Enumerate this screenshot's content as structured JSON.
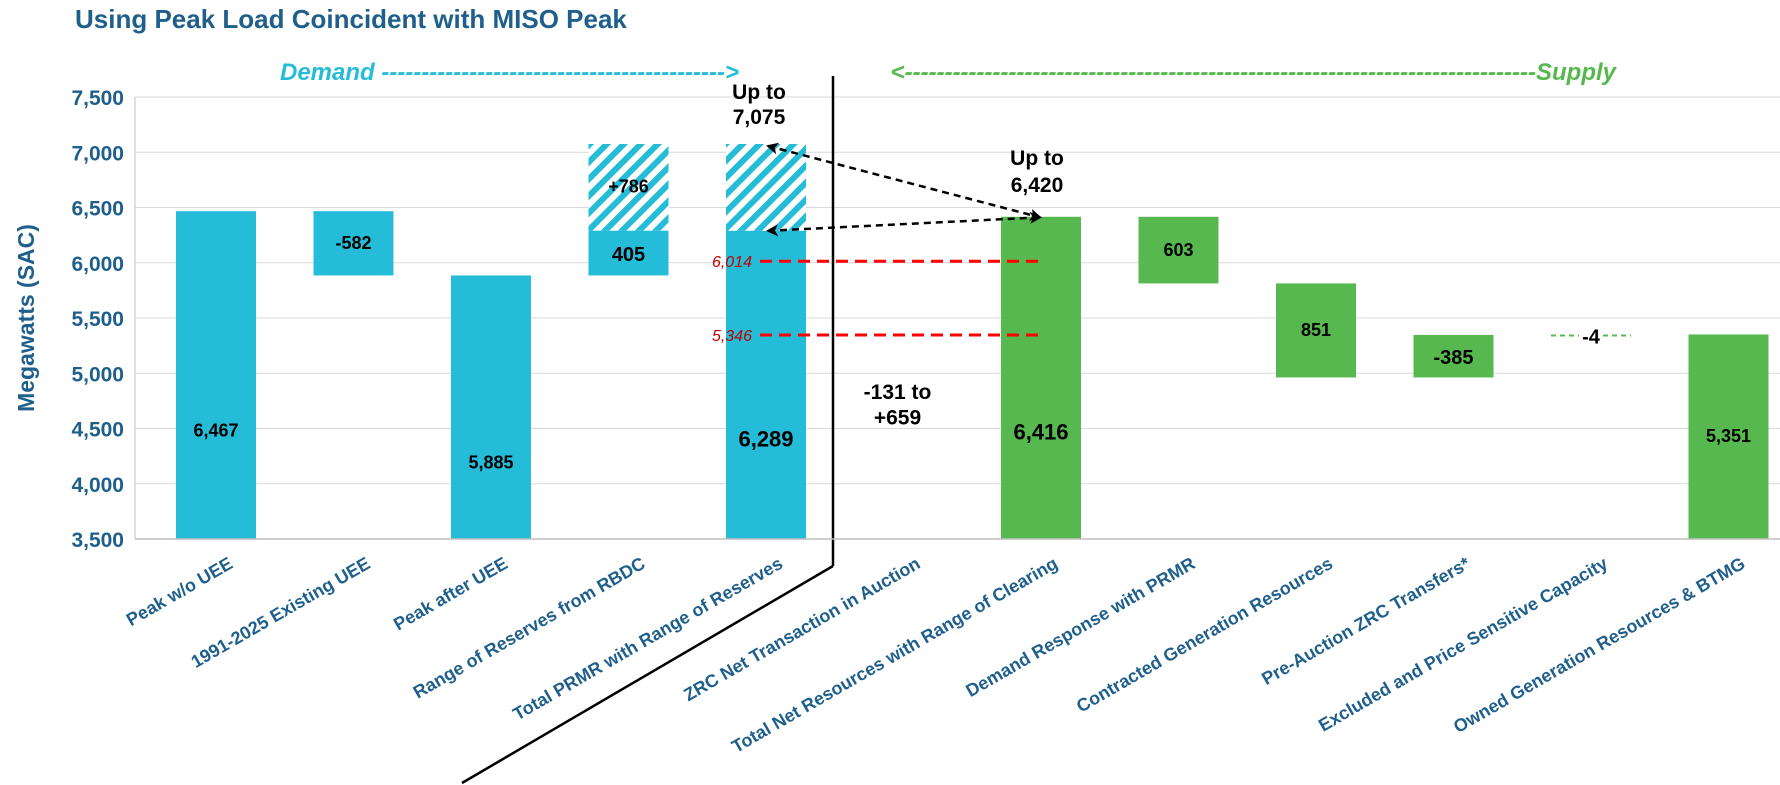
{
  "title": "Using Peak Load Coincident with MISO Peak",
  "chart_data": {
    "type": "bar",
    "ylabel": "Megawatts (SAC)",
    "ylim": [
      3500,
      7500
    ],
    "yticks": [
      "3,500",
      "4,000",
      "4,500",
      "5,000",
      "5,500",
      "6,000",
      "6,500",
      "7,000",
      "7,500"
    ],
    "grid": true,
    "demand_label": "Demand ------------------------------------------->",
    "supply_label": "<-------------------------------------------------------------------------------Supply",
    "colors": {
      "demand": "#25bcd8",
      "supply": "#57b84f",
      "reference": "#ff0000",
      "axis_text": "#1f5f8b",
      "demand_text": "#25bcd8",
      "supply_text": "#57b84f"
    },
    "categories": [
      "Peak w/o UEE",
      "1991-2025 Existing UEE",
      "Peak after UEE",
      "Range of Reserves from RBDC",
      "Total PRMR with Range of Reserves",
      "ZRC Net Transaction in Auction",
      "Total Net Resources with Range of Clearing",
      "Demand Response with PRMR",
      "Contracted Generation Resources",
      "Pre-Auction ZRC Transfers*",
      "Excluded and Price Sensitive Capacity",
      "Owned Generation Resources & BTMG"
    ],
    "bars": [
      {
        "category": "Peak w/o UEE",
        "side": "demand",
        "bottom": 3500,
        "top": 6467,
        "label": "6,467"
      },
      {
        "category": "1991-2025 Existing UEE",
        "side": "demand",
        "bottom": 5885,
        "top": 6467,
        "label": "-582"
      },
      {
        "category": "Peak after UEE",
        "side": "demand",
        "bottom": 3500,
        "top": 5885,
        "label": "5,885"
      },
      {
        "category": "Range of Reserves from RBDC",
        "side": "demand",
        "bottom": 5885,
        "top": 6290,
        "label": "405",
        "hatched_top": 7075,
        "hatched_label": "+786"
      },
      {
        "category": "Total PRMR with Range of Reserves",
        "side": "demand",
        "bottom": 3500,
        "top": 6289,
        "label": "6,289",
        "hatched_top": 7075,
        "range_label": [
          "Up to",
          "7,075"
        ]
      },
      {
        "category": "ZRC Net Transaction in Auction",
        "side": "supply",
        "value_text": [
          "-131 to",
          "+659"
        ]
      },
      {
        "category": "Total Net Resources with Range of Clearing",
        "side": "supply",
        "bottom": 3500,
        "top": 6416,
        "label": "6,416",
        "range_label": [
          "Up to",
          "6,420"
        ]
      },
      {
        "category": "Demand Response with PRMR",
        "side": "supply",
        "bottom": 5813,
        "top": 6416,
        "label": "603"
      },
      {
        "category": "Contracted Generation Resources",
        "side": "supply",
        "bottom": 4962,
        "top": 5813,
        "label": "851"
      },
      {
        "category": "Pre-Auction ZRC Transfers*",
        "side": "supply",
        "bottom": 4962,
        "top": 5347,
        "label": "-385"
      },
      {
        "category": "Excluded and Price Sensitive Capacity",
        "side": "supply",
        "bottom": 5347,
        "top": 5351,
        "label": "-4"
      },
      {
        "category": "Owned Generation Resources & BTMG",
        "side": "supply",
        "bottom": 3500,
        "top": 5351,
        "label": "5,351"
      }
    ],
    "reference_lines": [
      {
        "value": 6014,
        "label": "6,014"
      },
      {
        "value": 5346,
        "label": "5,346"
      }
    ]
  }
}
